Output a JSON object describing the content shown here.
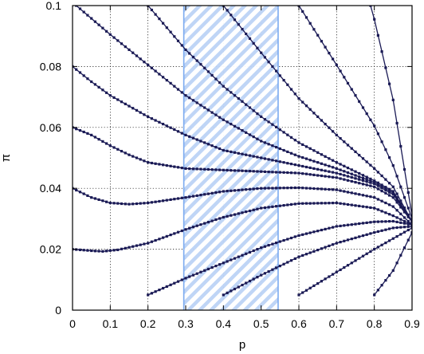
{
  "chart_data": {
    "type": "line",
    "title": "",
    "xlabel": "p",
    "ylabel": "π",
    "xlim": [
      0,
      0.9
    ],
    "ylim": [
      0,
      0.1
    ],
    "grid": true,
    "legend": "none",
    "xticks": [
      "0",
      "0.1",
      "0.2",
      "0.3",
      "0.4",
      "0.5",
      "0.6",
      "0.7",
      "0.8",
      "0.9"
    ],
    "yticks": [
      "0",
      "0.02",
      "0.04",
      "0.06",
      "0.08",
      "0.1"
    ],
    "xtick_values": [
      0,
      0.1,
      0.2,
      0.3,
      0.4,
      0.5,
      0.6,
      0.7,
      0.8,
      0.9
    ],
    "ytick_values": [
      0,
      0.02,
      0.04,
      0.06,
      0.08,
      0.1
    ],
    "shaded_region": {
      "x": [
        0.295,
        0.545
      ],
      "fill": "hatched",
      "color": "#7aaaf0"
    },
    "line_color": "#1a1a55",
    "series": [
      {
        "x": [
          0,
          0.05,
          0.08,
          0.12,
          0.2,
          0.3,
          0.4,
          0.5,
          0.6,
          0.7,
          0.8,
          0.85,
          0.9
        ],
        "y": [
          0.02,
          0.0195,
          0.0193,
          0.0198,
          0.022,
          0.0265,
          0.0305,
          0.0335,
          0.035,
          0.0352,
          0.0335,
          0.031,
          0.028
        ]
      },
      {
        "x": [
          0,
          0.05,
          0.1,
          0.15,
          0.2,
          0.3,
          0.4,
          0.5,
          0.6,
          0.7,
          0.8,
          0.85,
          0.9
        ],
        "y": [
          0.04,
          0.037,
          0.0352,
          0.0348,
          0.0352,
          0.037,
          0.039,
          0.04,
          0.0402,
          0.0395,
          0.037,
          0.034,
          0.028
        ]
      },
      {
        "x": [
          0,
          0.05,
          0.1,
          0.15,
          0.2,
          0.3,
          0.4,
          0.5,
          0.6,
          0.7,
          0.8,
          0.85,
          0.9
        ],
        "y": [
          0.06,
          0.0575,
          0.054,
          0.051,
          0.0485,
          0.0465,
          0.046,
          0.0455,
          0.045,
          0.0435,
          0.0405,
          0.037,
          0.029
        ]
      },
      {
        "x": [
          0,
          0.05,
          0.1,
          0.2,
          0.3,
          0.4,
          0.5,
          0.6,
          0.7,
          0.8,
          0.85,
          0.9
        ],
        "y": [
          0.08,
          0.075,
          0.0705,
          0.0635,
          0.0575,
          0.0525,
          0.05,
          0.0475,
          0.045,
          0.0415,
          0.038,
          0.029
        ]
      },
      {
        "x": [
          0.01,
          0.1,
          0.2,
          0.3,
          0.4,
          0.5,
          0.6,
          0.7,
          0.8,
          0.85,
          0.9
        ],
        "y": [
          0.1,
          0.0905,
          0.0805,
          0.0705,
          0.0625,
          0.0555,
          0.0505,
          0.0465,
          0.042,
          0.0385,
          0.029
        ]
      },
      {
        "x": [
          0.2,
          0.3,
          0.4,
          0.5,
          0.6,
          0.7,
          0.8,
          0.85,
          0.9
        ],
        "y": [
          0.1,
          0.0855,
          0.0735,
          0.0635,
          0.055,
          0.0485,
          0.0425,
          0.039,
          0.029
        ]
      },
      {
        "x": [
          0.4,
          0.5,
          0.6,
          0.7,
          0.8,
          0.85,
          0.9
        ],
        "y": [
          0.1,
          0.0845,
          0.0695,
          0.0575,
          0.0465,
          0.0405,
          0.029
        ]
      },
      {
        "x": [
          0.6,
          0.7,
          0.8,
          0.85,
          0.9
        ],
        "y": [
          0.1,
          0.0805,
          0.0605,
          0.0475,
          0.03
        ]
      },
      {
        "x": [
          0.79,
          0.8,
          0.85,
          0.9
        ],
        "y": [
          0.1,
          0.0955,
          0.069,
          0.031
        ]
      },
      {
        "x": [
          0.2,
          0.3,
          0.4,
          0.5,
          0.6,
          0.7,
          0.8,
          0.85,
          0.9
        ],
        "y": [
          0.005,
          0.0105,
          0.0155,
          0.0205,
          0.0245,
          0.0275,
          0.029,
          0.0292,
          0.028
        ]
      },
      {
        "x": [
          0.4,
          0.5,
          0.6,
          0.7,
          0.8,
          0.85,
          0.9
        ],
        "y": [
          0.005,
          0.0115,
          0.0175,
          0.022,
          0.0255,
          0.027,
          0.0275
        ]
      },
      {
        "x": [
          0.6,
          0.7,
          0.8,
          0.85,
          0.9
        ],
        "y": [
          0.005,
          0.0125,
          0.02,
          0.0235,
          0.027
        ]
      },
      {
        "x": [
          0.8,
          0.85,
          0.9
        ],
        "y": [
          0.005,
          0.013,
          0.0255
        ]
      }
    ]
  }
}
